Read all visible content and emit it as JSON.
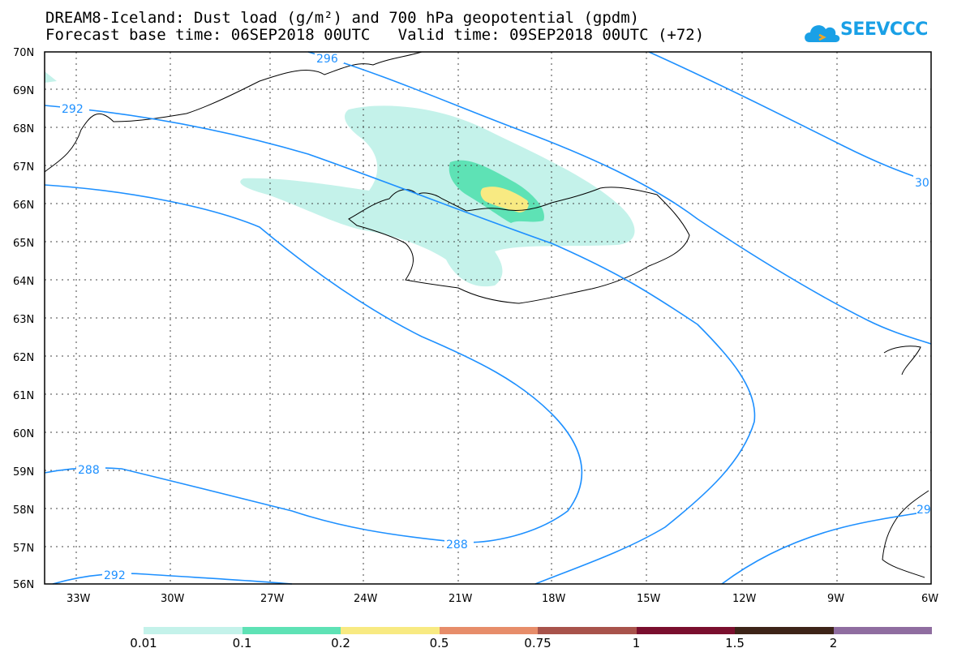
{
  "title_line1": "DREAM8-Iceland: Dust load (g/m²) and 700 hPa geopotential (gpdm)",
  "title_line2": "Forecast base time: 06SEP2018 00UTC   Valid time: 09SEP2018 00UTC (+72)",
  "logo_text": "SEEVCCC",
  "map": {
    "lat_labels": [
      "70N",
      "69N",
      "68N",
      "67N",
      "66N",
      "65N",
      "64N",
      "63N",
      "62N",
      "61N",
      "60N",
      "59N",
      "58N",
      "57N",
      "56N"
    ],
    "lon_labels": [
      "33W",
      "30W",
      "27W",
      "24W",
      "21W",
      "18W",
      "15W",
      "12W",
      "9W",
      "6W"
    ],
    "contour_labels": [
      "296",
      "292",
      "288",
      "288",
      "292",
      "30",
      "29"
    ]
  },
  "legend": {
    "thresholds": [
      "0.01",
      "0.1",
      "0.2",
      "0.5",
      "0.75",
      "1",
      "1.5",
      "2"
    ],
    "colors": [
      "#c4f2ea",
      "#5ee2b5",
      "#f8ea82",
      "#e78d6a",
      "#a8534b",
      "#7a0f2e",
      "#3d2418",
      "#8f6da0"
    ]
  }
}
